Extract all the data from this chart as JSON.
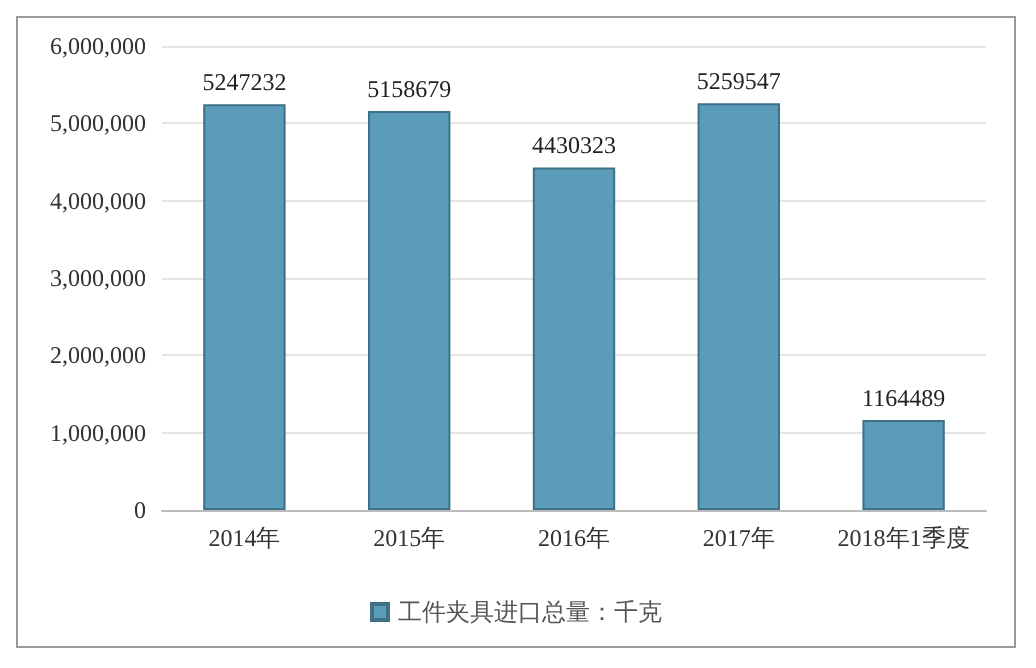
{
  "chart_data": {
    "type": "bar",
    "categories": [
      "2014年",
      "2015年",
      "2016年",
      "2017年",
      "2018年1季度"
    ],
    "series": [
      {
        "name": "工件夹具进口总量：千克",
        "color": "#5a9cba",
        "values": [
          5247232,
          5158679,
          4430323,
          5259547,
          1164489
        ]
      }
    ],
    "ylim": [
      0,
      6000000
    ],
    "yticks": [
      0,
      {
        "value": 1000000,
        "label": "1,000,000"
      },
      {
        "value": 2000000,
        "label": "2,000,000"
      },
      {
        "value": 3000000,
        "label": "3,000,000"
      },
      {
        "value": 4000000,
        "label": "4,000,000"
      },
      {
        "value": 5000000,
        "label": "5,000,000"
      },
      {
        "value": 6000000,
        "label": "6,000,000"
      }
    ],
    "grid": "y",
    "legend": "bottom",
    "data_labels": true
  }
}
